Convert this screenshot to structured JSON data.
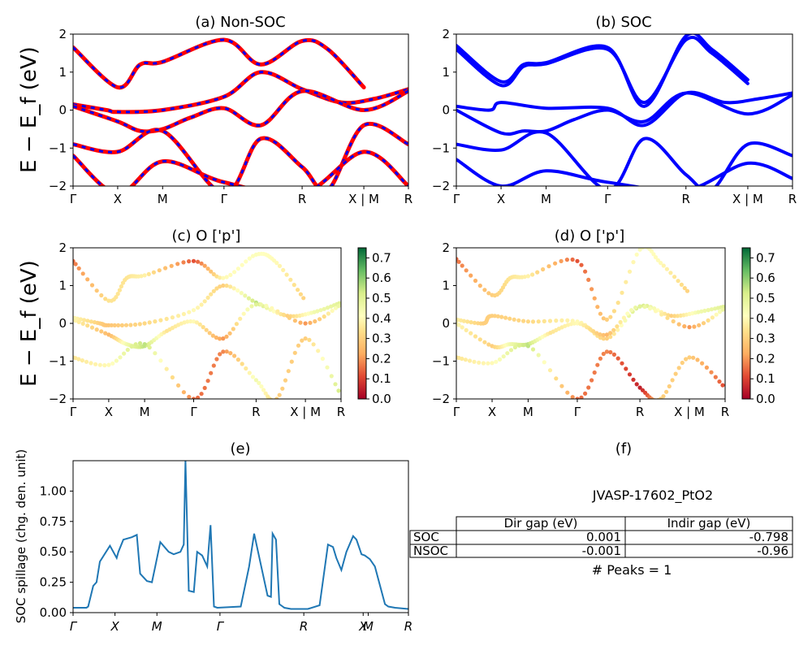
{
  "band_panels": {
    "xticks": [
      "Γ",
      "X",
      "M",
      "Γ",
      "R",
      "X | M",
      "R"
    ],
    "ylabel": "E − E_f (eV)",
    "yticks": [
      "−2",
      "−1",
      "0",
      "1",
      "2"
    ],
    "ylim": [
      -2,
      2
    ]
  },
  "colorbar": {
    "ticks": [
      "0.0",
      "0.1",
      "0.2",
      "0.3",
      "0.4",
      "0.5",
      "0.6",
      "0.7"
    ],
    "range": [
      0,
      0.75
    ],
    "colormap": "RdYlGn"
  },
  "chart_data": [
    {
      "panel": "a",
      "type": "line",
      "title": "(a) Non-SOC",
      "ylim": [
        -2,
        2
      ],
      "xtick_positions": [
        0,
        0.133,
        0.267,
        0.45,
        0.683,
        0.867,
        1.0
      ],
      "colors": {
        "primary": "#ff0000",
        "dashed": "#0000ff"
      },
      "series": [
        {
          "x": [
            0,
            0.133,
            0.2,
            0.267,
            0.45,
            0.56,
            0.683,
            0.76,
            0.867
          ],
          "y": [
            1.65,
            0.6,
            1.2,
            1.27,
            1.85,
            1.2,
            1.82,
            1.6,
            0.6
          ]
        },
        {
          "x": [
            0,
            0.1,
            0.133,
            0.267,
            0.45,
            0.56,
            0.683,
            0.8,
            0.9,
            1.0
          ],
          "y": [
            0.15,
            0.0,
            -0.05,
            0.0,
            0.35,
            1.0,
            0.55,
            0.2,
            0.3,
            0.55
          ]
        },
        {
          "x": [
            0,
            0.133,
            0.2,
            0.267,
            0.35,
            0.45,
            0.56,
            0.683,
            0.867,
            1.0
          ],
          "y": [
            0.1,
            -0.3,
            -0.55,
            -0.5,
            -0.2,
            0.05,
            -0.4,
            0.5,
            0.0,
            0.5
          ]
        },
        {
          "x": [
            0,
            0.133,
            0.267,
            0.45,
            0.56,
            0.683,
            0.76,
            0.867,
            1.0
          ],
          "y": [
            -0.9,
            -1.1,
            -0.55,
            -2.2,
            -0.75,
            -1.5,
            -2.1,
            -0.4,
            -0.9
          ]
        },
        {
          "x": [
            0,
            0.133,
            0.267,
            0.45,
            0.683,
            0.867,
            1.0
          ],
          "y": [
            -1.2,
            -2.2,
            -1.35,
            -1.9,
            -2.2,
            -1.1,
            -2.0
          ]
        }
      ]
    },
    {
      "panel": "b",
      "type": "line",
      "title": "(b) SOC",
      "ylim": [
        -2,
        2
      ],
      "xtick_positions": [
        0,
        0.133,
        0.267,
        0.45,
        0.683,
        0.867,
        1.0
      ],
      "colors": {
        "primary": "#0000ff"
      },
      "series": [
        {
          "x": [
            0,
            0.133,
            0.2,
            0.267,
            0.45,
            0.56,
            0.683,
            0.76,
            0.867
          ],
          "y": [
            1.7,
            0.75,
            1.2,
            1.25,
            1.65,
            0.1,
            1.95,
            1.6,
            0.8
          ]
        },
        {
          "x": [
            0,
            0.133,
            0.2,
            0.267,
            0.45,
            0.56,
            0.683,
            0.76,
            0.867
          ],
          "y": [
            1.6,
            0.65,
            1.15,
            1.22,
            1.6,
            0.2,
            1.85,
            1.5,
            0.7
          ]
        },
        {
          "x": [
            0,
            0.1,
            0.133,
            0.267,
            0.45,
            0.56,
            0.683,
            0.8,
            0.9,
            1.0
          ],
          "y": [
            0.1,
            0.0,
            0.2,
            0.05,
            0.05,
            -0.4,
            0.45,
            0.2,
            0.3,
            0.45
          ]
        },
        {
          "x": [
            0,
            0.133,
            0.2,
            0.267,
            0.35,
            0.45,
            0.56,
            0.683,
            0.867,
            1.0
          ],
          "y": [
            0.0,
            -0.6,
            -0.55,
            -0.55,
            -0.25,
            0.0,
            -0.3,
            0.45,
            -0.1,
            0.4
          ]
        },
        {
          "x": [
            0,
            0.133,
            0.267,
            0.45,
            0.56,
            0.683,
            0.76,
            0.867,
            1.0
          ],
          "y": [
            -0.9,
            -1.05,
            -0.6,
            -2.1,
            -0.75,
            -1.7,
            -2.1,
            -0.9,
            -1.2
          ]
        },
        {
          "x": [
            0,
            0.133,
            0.267,
            0.45,
            0.683,
            0.867,
            1.0
          ],
          "y": [
            -1.3,
            -2.0,
            -1.6,
            -1.9,
            -2.1,
            -1.4,
            -1.8
          ]
        }
      ]
    },
    {
      "panel": "c",
      "type": "scatter",
      "title": "(c)  O ['p']",
      "ylim": [
        -2,
        2
      ],
      "xtick_positions": [
        0,
        0.133,
        0.267,
        0.45,
        0.683,
        0.867,
        1.0
      ],
      "series": [
        {
          "x": [
            0,
            0.133,
            0.2,
            0.267,
            0.45,
            0.56,
            0.683,
            0.76,
            0.867
          ],
          "y": [
            1.65,
            0.6,
            1.2,
            1.27,
            1.65,
            1.2,
            1.82,
            1.6,
            0.6
          ],
          "weights": [
            0.15,
            0.35,
            0.35,
            0.38,
            0.12,
            0.4,
            0.42,
            0.4,
            0.3
          ]
        },
        {
          "x": [
            0,
            0.1,
            0.133,
            0.267,
            0.45,
            0.56,
            0.683,
            0.8,
            0.9,
            1.0
          ],
          "y": [
            0.15,
            0.0,
            -0.05,
            0.0,
            0.35,
            1.0,
            0.55,
            0.2,
            0.3,
            0.55
          ],
          "weights": [
            0.4,
            0.3,
            0.28,
            0.32,
            0.4,
            0.3,
            0.55,
            0.3,
            0.45,
            0.5
          ]
        },
        {
          "x": [
            0,
            0.133,
            0.2,
            0.267,
            0.35,
            0.45,
            0.56,
            0.683,
            0.867,
            1.0
          ],
          "y": [
            0.1,
            -0.3,
            -0.55,
            -0.6,
            -0.2,
            0.05,
            -0.4,
            0.5,
            0.0,
            0.5
          ],
          "weights": [
            0.4,
            0.25,
            0.45,
            0.55,
            0.35,
            0.4,
            0.2,
            0.5,
            0.2,
            0.5
          ]
        },
        {
          "x": [
            0,
            0.133,
            0.267,
            0.45,
            0.56,
            0.683,
            0.76,
            0.867,
            1.0
          ],
          "y": [
            -0.9,
            -1.1,
            -0.55,
            -2.0,
            -0.75,
            -1.5,
            -2.0,
            -0.4,
            -1.9
          ],
          "weights": [
            0.35,
            0.4,
            0.55,
            0.15,
            0.18,
            0.45,
            0.3,
            0.3,
            0.55
          ]
        }
      ]
    },
    {
      "panel": "d",
      "type": "scatter",
      "title": "(d) O ['p']",
      "ylim": [
        -2,
        2
      ],
      "xtick_positions": [
        0,
        0.133,
        0.267,
        0.45,
        0.683,
        0.867,
        1.0
      ],
      "series": [
        {
          "x": [
            0,
            0.133,
            0.2,
            0.267,
            0.45,
            0.56,
            0.683,
            0.76,
            0.867
          ],
          "y": [
            1.7,
            0.75,
            1.2,
            1.25,
            1.65,
            0.1,
            1.95,
            1.6,
            0.8
          ],
          "weights": [
            0.15,
            0.3,
            0.35,
            0.38,
            0.12,
            0.3,
            0.42,
            0.4,
            0.3
          ]
        },
        {
          "x": [
            0,
            0.1,
            0.133,
            0.267,
            0.45,
            0.56,
            0.683,
            0.8,
            0.9,
            1.0
          ],
          "y": [
            0.1,
            0.0,
            0.2,
            0.05,
            0.05,
            -0.4,
            0.45,
            0.2,
            0.3,
            0.45
          ],
          "weights": [
            0.38,
            0.3,
            0.3,
            0.32,
            0.4,
            0.3,
            0.55,
            0.3,
            0.45,
            0.5
          ]
        },
        {
          "x": [
            0,
            0.133,
            0.2,
            0.267,
            0.35,
            0.45,
            0.56,
            0.683,
            0.867,
            1.0
          ],
          "y": [
            0.0,
            -0.6,
            -0.55,
            -0.55,
            -0.25,
            0.0,
            -0.3,
            0.45,
            -0.1,
            0.4
          ],
          "weights": [
            0.4,
            0.3,
            0.45,
            0.55,
            0.35,
            0.4,
            0.25,
            0.5,
            0.2,
            0.5
          ]
        },
        {
          "x": [
            0,
            0.133,
            0.267,
            0.45,
            0.56,
            0.683,
            0.76,
            0.867,
            1.0
          ],
          "y": [
            -0.9,
            -1.05,
            -0.6,
            -2.0,
            -0.75,
            -1.7,
            -2.0,
            -0.9,
            -1.7
          ],
          "weights": [
            0.35,
            0.4,
            0.55,
            0.15,
            0.18,
            0.05,
            0.3,
            0.3,
            0.1
          ]
        }
      ]
    },
    {
      "panel": "e",
      "type": "line",
      "title": "(e)",
      "ylabel": "SOC spillage (chg. den. unit)",
      "xticks": [
        "Γ",
        "X",
        "M",
        "Γ",
        "R",
        "X",
        "M",
        "R"
      ],
      "xtick_positions": [
        0,
        0.125,
        0.25,
        0.438,
        0.688,
        0.865,
        0.88,
        1.0
      ],
      "yticks": [
        "0.00",
        "0.25",
        "0.50",
        "0.75",
        "1.00"
      ],
      "ylim": [
        0,
        1.25
      ],
      "colors": {
        "line": "#1f77b4"
      },
      "x": [
        0,
        0.04,
        0.045,
        0.06,
        0.07,
        0.08,
        0.11,
        0.13,
        0.135,
        0.15,
        0.175,
        0.19,
        0.2,
        0.22,
        0.235,
        0.245,
        0.26,
        0.285,
        0.3,
        0.32,
        0.33,
        0.335,
        0.345,
        0.36,
        0.37,
        0.385,
        0.4,
        0.41,
        0.42,
        0.43,
        0.5,
        0.525,
        0.54,
        0.58,
        0.59,
        0.595,
        0.605,
        0.615,
        0.625,
        0.63,
        0.65,
        0.7,
        0.735,
        0.76,
        0.775,
        0.785,
        0.8,
        0.815,
        0.835,
        0.845,
        0.86,
        0.87,
        0.885,
        0.9,
        0.93,
        0.94,
        0.96,
        1.0
      ],
      "y": [
        0.04,
        0.04,
        0.05,
        0.22,
        0.25,
        0.42,
        0.55,
        0.45,
        0.5,
        0.6,
        0.62,
        0.64,
        0.32,
        0.26,
        0.25,
        0.38,
        0.58,
        0.5,
        0.48,
        0.5,
        0.56,
        1.25,
        0.18,
        0.17,
        0.5,
        0.47,
        0.38,
        0.72,
        0.05,
        0.04,
        0.05,
        0.38,
        0.65,
        0.14,
        0.13,
        0.65,
        0.6,
        0.07,
        0.05,
        0.04,
        0.03,
        0.03,
        0.06,
        0.56,
        0.54,
        0.45,
        0.35,
        0.5,
        0.63,
        0.6,
        0.48,
        0.47,
        0.44,
        0.38,
        0.07,
        0.05,
        0.04,
        0.03
      ]
    }
  ],
  "panel_f": {
    "title": "(f)",
    "subtitle": "JVASP-17602_PtO2",
    "table": {
      "columns": [
        "Dir gap (eV)",
        "Indir gap (eV)"
      ],
      "rows": [
        {
          "label": "SOC",
          "dir": "0.001",
          "indir": "-0.798"
        },
        {
          "label": "NSOC",
          "dir": "-0.001",
          "indir": "-0.96"
        }
      ]
    },
    "peaks": "# Peaks = 1"
  }
}
